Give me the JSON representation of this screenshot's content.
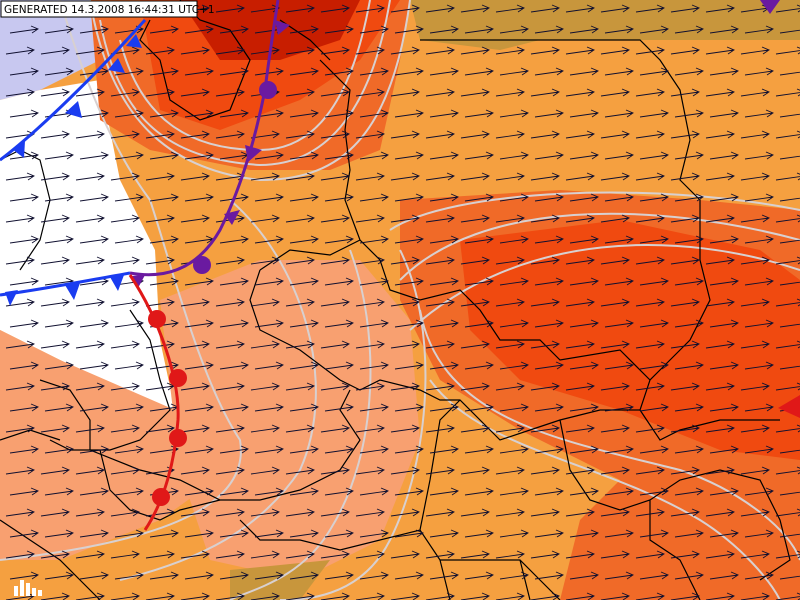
{
  "header": {
    "generated": "GENERATED 14.3.2008 16:44:31 UTC+1"
  }
}
